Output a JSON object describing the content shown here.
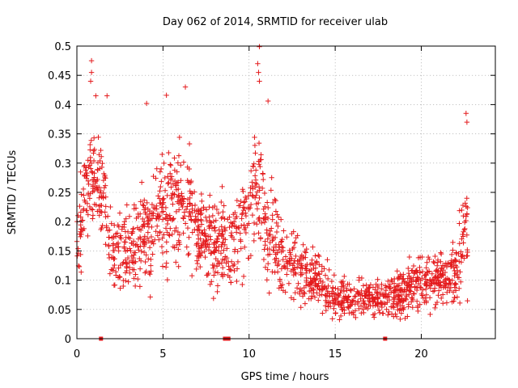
{
  "chart_data": {
    "type": "scatter",
    "title": "Day 062 of 2014, SRMTID for receiver ulab",
    "xlabel": "GPS time / hours",
    "ylabel": "SRMTID / TECUs",
    "xlim": [
      0,
      24.3
    ],
    "ylim": [
      0,
      0.5
    ],
    "x_ticks": [
      0,
      5,
      10,
      15,
      20
    ],
    "x_tick_labels": [
      "0",
      "5",
      "10",
      "15",
      "20"
    ],
    "y_ticks": [
      0,
      0.05,
      0.1,
      0.15,
      0.2,
      0.25,
      0.3,
      0.35,
      0.4,
      0.45,
      0.5
    ],
    "y_tick_labels": [
      "0",
      "0.05",
      "0.1",
      "0.15",
      "0.2",
      "0.25",
      "0.3",
      "0.35",
      "0.4",
      "0.45",
      "0.5"
    ],
    "grid": true,
    "marker": "plus",
    "color": "#e41a1c",
    "zero_markers_x": [
      1.4,
      8.6,
      8.8,
      17.9
    ],
    "series": [
      {
        "name": "SRMTID",
        "envelope": [
          {
            "x": 0.0,
            "mean": 0.17,
            "spread": 0.05
          },
          {
            "x": 0.5,
            "mean": 0.24,
            "spread": 0.08
          },
          {
            "x": 1.0,
            "mean": 0.28,
            "spread": 0.07
          },
          {
            "x": 1.5,
            "mean": 0.25,
            "spread": 0.07
          },
          {
            "x": 2.0,
            "mean": 0.16,
            "spread": 0.06
          },
          {
            "x": 3.0,
            "mean": 0.15,
            "spread": 0.06
          },
          {
            "x": 4.0,
            "mean": 0.17,
            "spread": 0.07
          },
          {
            "x": 5.0,
            "mean": 0.22,
            "spread": 0.08
          },
          {
            "x": 6.0,
            "mean": 0.24,
            "spread": 0.08
          },
          {
            "x": 7.0,
            "mean": 0.19,
            "spread": 0.06
          },
          {
            "x": 8.0,
            "mean": 0.16,
            "spread": 0.06
          },
          {
            "x": 9.0,
            "mean": 0.17,
            "spread": 0.07
          },
          {
            "x": 10.0,
            "mean": 0.21,
            "spread": 0.07
          },
          {
            "x": 10.5,
            "mean": 0.26,
            "spread": 0.09
          },
          {
            "x": 11.0,
            "mean": 0.17,
            "spread": 0.07
          },
          {
            "x": 12.0,
            "mean": 0.15,
            "spread": 0.06
          },
          {
            "x": 13.0,
            "mean": 0.12,
            "spread": 0.05
          },
          {
            "x": 14.0,
            "mean": 0.1,
            "spread": 0.04
          },
          {
            "x": 15.0,
            "mean": 0.07,
            "spread": 0.025
          },
          {
            "x": 16.0,
            "mean": 0.065,
            "spread": 0.022
          },
          {
            "x": 17.0,
            "mean": 0.07,
            "spread": 0.022
          },
          {
            "x": 18.0,
            "mean": 0.07,
            "spread": 0.03
          },
          {
            "x": 19.0,
            "mean": 0.08,
            "spread": 0.035
          },
          {
            "x": 20.0,
            "mean": 0.1,
            "spread": 0.04
          },
          {
            "x": 21.0,
            "mean": 0.1,
            "spread": 0.04
          },
          {
            "x": 22.0,
            "mean": 0.11,
            "spread": 0.045
          },
          {
            "x": 22.7,
            "mean": 0.2,
            "spread": 0.09
          }
        ],
        "x_range": [
          0,
          22.7
        ],
        "n_points": 1700,
        "peaks": [
          {
            "x": 0.85,
            "y": 0.475
          },
          {
            "x": 0.85,
            "y": 0.455
          },
          {
            "x": 0.8,
            "y": 0.44
          },
          {
            "x": 1.1,
            "y": 0.415
          },
          {
            "x": 1.75,
            "y": 0.415
          },
          {
            "x": 4.05,
            "y": 0.402
          },
          {
            "x": 5.2,
            "y": 0.416
          },
          {
            "x": 6.3,
            "y": 0.43
          },
          {
            "x": 10.6,
            "y": 0.499
          },
          {
            "x": 10.5,
            "y": 0.47
          },
          {
            "x": 10.55,
            "y": 0.455
          },
          {
            "x": 10.6,
            "y": 0.44
          },
          {
            "x": 11.1,
            "y": 0.406
          },
          {
            "x": 22.6,
            "y": 0.385
          },
          {
            "x": 22.65,
            "y": 0.37
          }
        ]
      }
    ]
  }
}
